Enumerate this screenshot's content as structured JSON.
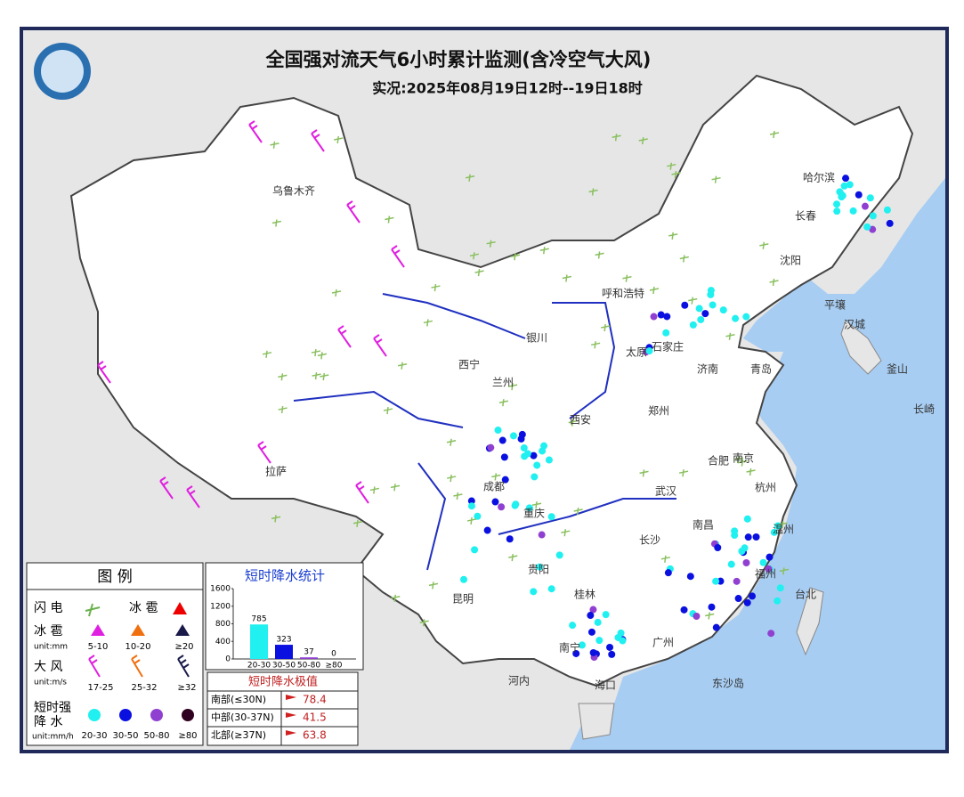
{
  "header": {
    "title": "全国强对流天气6小时累计监测(含冷空气大风)",
    "subtitle": "实况:2025年08月19日12时--19日18时"
  },
  "cities": [
    "乌鲁木齐",
    "哈尔滨",
    "长春",
    "沈阳",
    "呼和浩特",
    "平壤",
    "汉城",
    "银川",
    "太原",
    "石家庄",
    "济南",
    "青岛",
    "西宁",
    "兰州",
    "郑州",
    "西安",
    "合肥",
    "南京",
    "成都",
    "武汉",
    "拉萨",
    "重庆",
    "长沙",
    "南昌",
    "杭州",
    "贵阳",
    "温州",
    "福州",
    "昆明",
    "桂林",
    "南宁",
    "广州",
    "台北",
    "釜山",
    "长崎",
    "河内",
    "东沙岛",
    "海口"
  ],
  "legend": {
    "title": "图 例",
    "lightning": "闪 电",
    "hail_label": "冰 雹",
    "hail_size_label": "冰 雹",
    "hail_unit": "unit:mm",
    "hail_ranges": [
      "5-10",
      "10-20",
      "≥20"
    ],
    "wind_label": "大 风",
    "wind_unit": "unit:m/s",
    "wind_ranges": [
      "17-25",
      "25-32",
      "≥32"
    ],
    "rain_label_1": "短时强",
    "rain_label_2": "降 水",
    "rain_unit": "unit:mm/h",
    "rain_ranges": [
      "20-30",
      "30-50",
      "50-80",
      "≥80"
    ]
  },
  "stats": {
    "title": "短时降水统计",
    "categories": [
      "20-30",
      "30-50",
      "50-80",
      "≥80"
    ],
    "values": [
      785,
      323,
      37,
      0
    ],
    "ylim": [
      0,
      1600
    ],
    "yticks": [
      0,
      400,
      800,
      1200,
      1600
    ]
  },
  "extremes": {
    "title": "短时降水极值",
    "rows": [
      {
        "region": "南部(≤30N)",
        "value": 78.4
      },
      {
        "region": "中部(30-37N)",
        "value": 41.5
      },
      {
        "region": "北部(≥37N)",
        "value": 63.8
      }
    ]
  }
}
